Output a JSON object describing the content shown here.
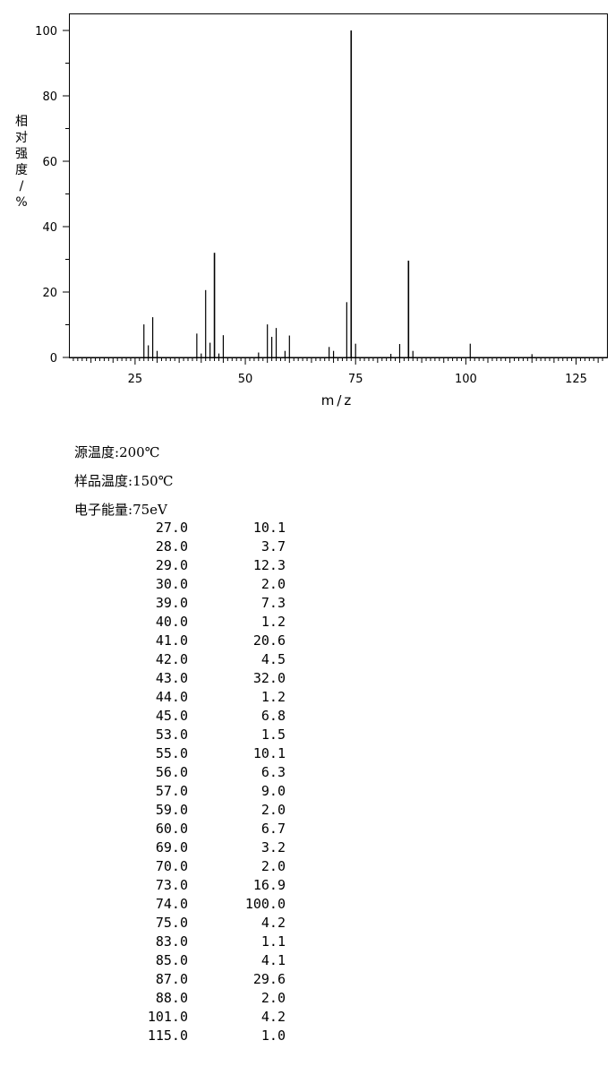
{
  "chart_data": {
    "type": "bar",
    "title": "",
    "xlabel": "m/z",
    "ylabel": "相对强度/%",
    "xlim": [
      10,
      132
    ],
    "ylim": [
      0,
      105
    ],
    "x_ticks": [
      25,
      50,
      75,
      100,
      125
    ],
    "y_ticks": [
      0,
      20,
      40,
      60,
      80,
      100
    ],
    "grid": false,
    "points": [
      {
        "mz": 27.0,
        "intensity": 10.1
      },
      {
        "mz": 28.0,
        "intensity": 3.7
      },
      {
        "mz": 29.0,
        "intensity": 12.3
      },
      {
        "mz": 30.0,
        "intensity": 2.0
      },
      {
        "mz": 39.0,
        "intensity": 7.3
      },
      {
        "mz": 40.0,
        "intensity": 1.2
      },
      {
        "mz": 41.0,
        "intensity": 20.6
      },
      {
        "mz": 42.0,
        "intensity": 4.5
      },
      {
        "mz": 43.0,
        "intensity": 32.0
      },
      {
        "mz": 44.0,
        "intensity": 1.2
      },
      {
        "mz": 45.0,
        "intensity": 6.8
      },
      {
        "mz": 53.0,
        "intensity": 1.5
      },
      {
        "mz": 55.0,
        "intensity": 10.1
      },
      {
        "mz": 56.0,
        "intensity": 6.3
      },
      {
        "mz": 57.0,
        "intensity": 9.0
      },
      {
        "mz": 59.0,
        "intensity": 2.0
      },
      {
        "mz": 60.0,
        "intensity": 6.7
      },
      {
        "mz": 69.0,
        "intensity": 3.2
      },
      {
        "mz": 70.0,
        "intensity": 2.0
      },
      {
        "mz": 73.0,
        "intensity": 16.9
      },
      {
        "mz": 74.0,
        "intensity": 100.0
      },
      {
        "mz": 75.0,
        "intensity": 4.2
      },
      {
        "mz": 83.0,
        "intensity": 1.1
      },
      {
        "mz": 85.0,
        "intensity": 4.1
      },
      {
        "mz": 87.0,
        "intensity": 29.6
      },
      {
        "mz": 88.0,
        "intensity": 2.0
      },
      {
        "mz": 101.0,
        "intensity": 4.2
      },
      {
        "mz": 115.0,
        "intensity": 1.0
      }
    ]
  },
  "conditions": [
    {
      "label": "源温度",
      "value": "200℃"
    },
    {
      "label": "样品温度",
      "value": "150℃"
    },
    {
      "label": "电子能量",
      "value": "75eV"
    }
  ],
  "peak_table": [
    {
      "mz": "27.0",
      "intensity": "10.1"
    },
    {
      "mz": "28.0",
      "intensity": "3.7"
    },
    {
      "mz": "29.0",
      "intensity": "12.3"
    },
    {
      "mz": "30.0",
      "intensity": "2.0"
    },
    {
      "mz": "39.0",
      "intensity": "7.3"
    },
    {
      "mz": "40.0",
      "intensity": "1.2"
    },
    {
      "mz": "41.0",
      "intensity": "20.6"
    },
    {
      "mz": "42.0",
      "intensity": "4.5"
    },
    {
      "mz": "43.0",
      "intensity": "32.0"
    },
    {
      "mz": "44.0",
      "intensity": "1.2"
    },
    {
      "mz": "45.0",
      "intensity": "6.8"
    },
    {
      "mz": "53.0",
      "intensity": "1.5"
    },
    {
      "mz": "55.0",
      "intensity": "10.1"
    },
    {
      "mz": "56.0",
      "intensity": "6.3"
    },
    {
      "mz": "57.0",
      "intensity": "9.0"
    },
    {
      "mz": "59.0",
      "intensity": "2.0"
    },
    {
      "mz": "60.0",
      "intensity": "6.7"
    },
    {
      "mz": "69.0",
      "intensity": "3.2"
    },
    {
      "mz": "70.0",
      "intensity": "2.0"
    },
    {
      "mz": "73.0",
      "intensity": "16.9"
    },
    {
      "mz": "74.0",
      "intensity": "100.0"
    },
    {
      "mz": "75.0",
      "intensity": "4.2"
    },
    {
      "mz": "83.0",
      "intensity": "1.1"
    },
    {
      "mz": "85.0",
      "intensity": "4.1"
    },
    {
      "mz": "87.0",
      "intensity": "29.6"
    },
    {
      "mz": "88.0",
      "intensity": "2.0"
    },
    {
      "mz": "101.0",
      "intensity": "4.2"
    },
    {
      "mz": "115.0",
      "intensity": "1.0"
    }
  ]
}
